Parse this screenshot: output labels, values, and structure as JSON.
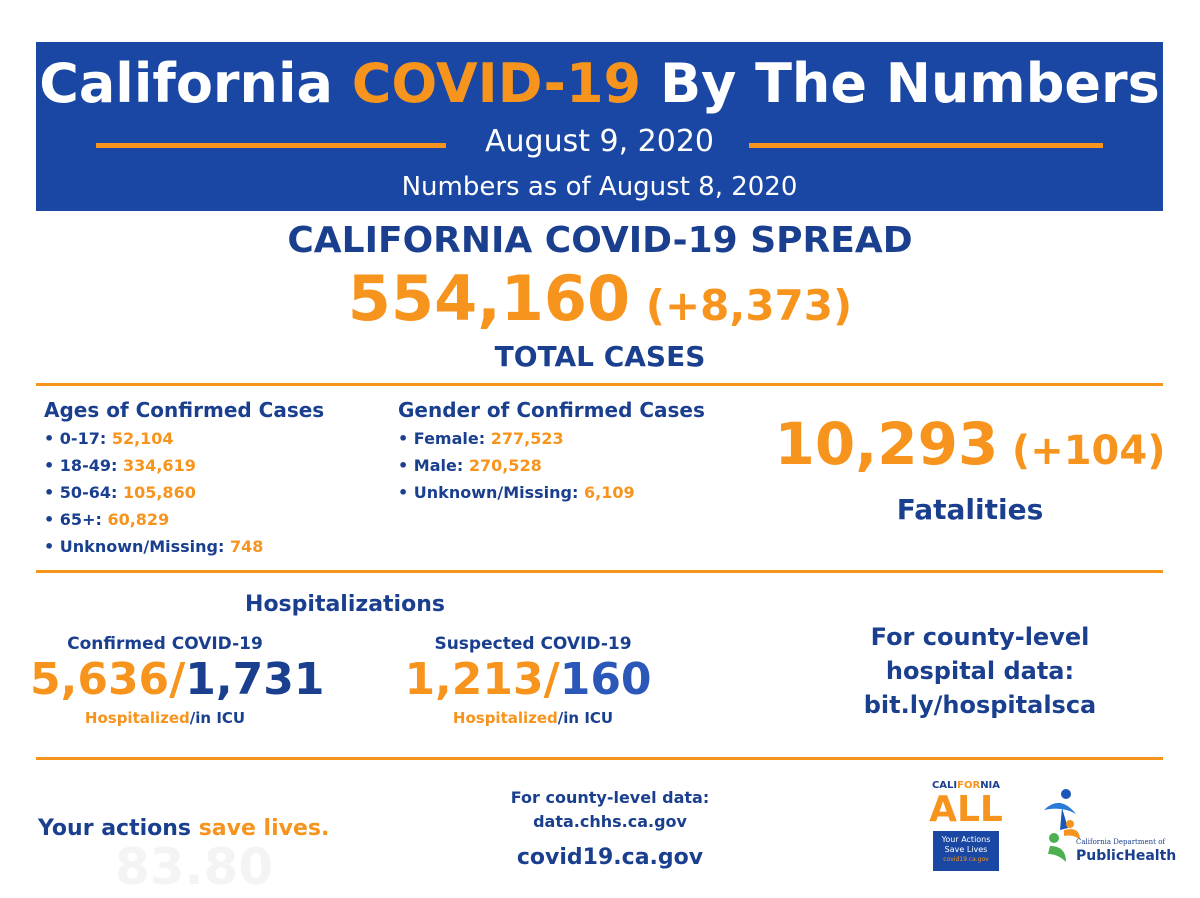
{
  "header": {
    "title_pre": "California",
    "title_highlight": "COVID-19",
    "title_post": "By The Numbers",
    "date": "August 9, 2020",
    "as_of": "Numbers as of August 8, 2020"
  },
  "spread": {
    "heading": "CALIFORNIA COVID-19 SPREAD",
    "total": "554,160",
    "change": "(+8,373)",
    "label": "TOTAL CASES"
  },
  "ages": {
    "title": "Ages of Confirmed Cases",
    "items": [
      {
        "label": "• 0-17:",
        "value": "52,104"
      },
      {
        "label": "• 18-49:",
        "value": "334,619"
      },
      {
        "label": "• 50-64:",
        "value": "105,860"
      },
      {
        "label": "• 65+:",
        "value": "60,829"
      },
      {
        "label": "• Unknown/Missing:",
        "value": "748"
      }
    ]
  },
  "gender": {
    "title": "Gender of Confirmed Cases",
    "items": [
      {
        "label": "• Female:",
        "value": "277,523"
      },
      {
        "label": "• Male:",
        "value": "270,528"
      },
      {
        "label": "• Unknown/Missing:",
        "value": "6,109"
      }
    ]
  },
  "fatalities": {
    "total": "10,293",
    "change": "(+104)",
    "label": "Fatalities"
  },
  "hospitalizations": {
    "title": "Hospitalizations",
    "confirmed": {
      "heading": "Confirmed COVID-19",
      "hospitalized": "5,636",
      "slash": "/",
      "icu": "1,731",
      "label_a": "Hospitalized",
      "label_b": "/in ICU"
    },
    "suspected": {
      "heading": "Suspected COVID-19",
      "hospitalized": "1,213",
      "slash": "/",
      "icu": "160",
      "label_a": "Hospitalized",
      "label_b": "/in ICU"
    },
    "county_note": [
      "For county-level",
      "hospital data:",
      "bit.ly/hospitalsca"
    ]
  },
  "footer": {
    "tagline_a": "Your actions",
    "tagline_b": "save lives.",
    "ghost_number": "83.80",
    "data_line1": "For county-level data:",
    "data_line2": "data.chhs.ca.gov",
    "site": "covid19.ca.gov"
  },
  "logos": {
    "caall_top_a": "CALI",
    "caall_top_b": "FOR",
    "caall_top_c": "NIA",
    "caall_all": "ALL",
    "caall_line1": "Your Actions",
    "caall_line2": "Save Lives",
    "caall_url": "covid19.ca.gov",
    "cdph_line1": "California Department of",
    "cdph_line2": "PublicHealth"
  },
  "colors": {
    "brand_blue": "#1a47a3",
    "text_blue": "#1a3f8f",
    "accent_orange": "#f7941d"
  }
}
